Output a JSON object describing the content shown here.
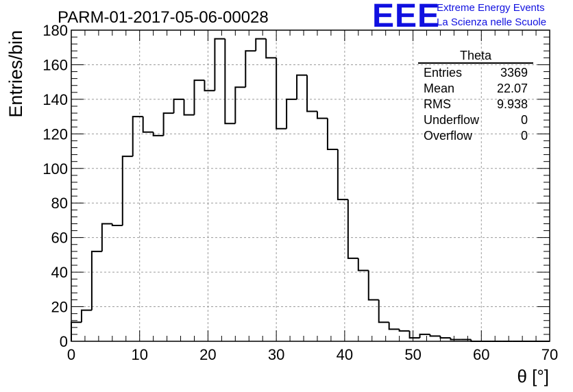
{
  "logo": {
    "mark": "EEE",
    "line1": "Extreme Energy Events",
    "line2": "La Scienza nelle Scuole",
    "color": "#1010e0"
  },
  "stats": {
    "title": "Theta",
    "rows": [
      {
        "label": "Entries",
        "value": "3369"
      },
      {
        "label": "Mean",
        "value": "22.07"
      },
      {
        "label": "RMS",
        "value": "9.938"
      },
      {
        "label": "Underflow",
        "value": "0"
      },
      {
        "label": "Overflow",
        "value": "0"
      }
    ]
  },
  "chart_data": {
    "type": "bar",
    "title": "PARM-01-2017-05-06-00028",
    "xlabel": "θ [°]",
    "ylabel": "Entries/bin",
    "xlim": [
      0,
      70
    ],
    "ylim": [
      0,
      180
    ],
    "xticks": [
      0,
      10,
      20,
      30,
      40,
      50,
      60,
      70
    ],
    "yticks": [
      0,
      20,
      40,
      60,
      80,
      100,
      120,
      140,
      160,
      180
    ],
    "grid": true,
    "histogram": true,
    "bin_width": 1.5,
    "bin_edges_start": 0,
    "values": [
      11,
      18,
      52,
      68,
      67,
      107,
      130,
      121,
      119,
      132,
      140,
      131,
      151,
      145,
      175,
      126,
      147,
      168,
      175,
      164,
      123,
      140,
      154,
      133,
      129,
      111,
      82,
      48,
      41,
      24,
      11,
      7,
      6,
      2,
      4,
      3,
      2,
      1,
      1,
      0,
      0,
      0,
      0,
      0,
      0,
      0,
      0
    ]
  }
}
